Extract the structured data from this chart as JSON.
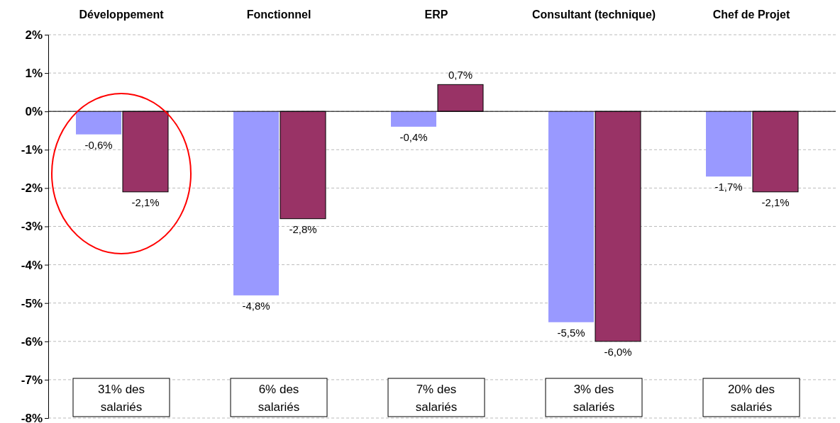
{
  "chart_data": {
    "type": "bar",
    "categories": [
      "Développement",
      "Fonctionnel",
      "ERP",
      "Consultant (technique)",
      "Chef de Projet"
    ],
    "series": [
      {
        "color": "#9999ff",
        "values": [
          -0.6,
          -4.8,
          -0.4,
          -5.5,
          -1.7
        ],
        "value_labels": [
          "-0,6%",
          "-4,8%",
          "-0,4%",
          "-5,5%",
          "-1,7%"
        ]
      },
      {
        "color": "#993366",
        "values": [
          -2.1,
          -2.8,
          0.7,
          -6.0,
          -2.1
        ],
        "value_labels": [
          "-2,1%",
          "-2,8%",
          "0,7%",
          "-6,0%",
          "-2,1%"
        ]
      }
    ],
    "ylim": [
      -8,
      2
    ],
    "yticks": [
      {
        "value": 2,
        "label": "2%"
      },
      {
        "value": 1,
        "label": "1%"
      },
      {
        "value": 0,
        "label": "0%"
      },
      {
        "value": -1,
        "label": "-1%"
      },
      {
        "value": -2,
        "label": "-2%"
      },
      {
        "value": -3,
        "label": "-3%"
      },
      {
        "value": -4,
        "label": "-4%"
      },
      {
        "value": -5,
        "label": "-5%"
      },
      {
        "value": -6,
        "label": "-6%"
      },
      {
        "value": -7,
        "label": "-7%"
      },
      {
        "value": -8,
        "label": "-8%"
      }
    ],
    "grid": "y",
    "annotations": [
      "31% des salariés",
      "6% des salariés",
      "7% des salariés",
      "3% des salariés",
      "20% des salariés"
    ]
  }
}
